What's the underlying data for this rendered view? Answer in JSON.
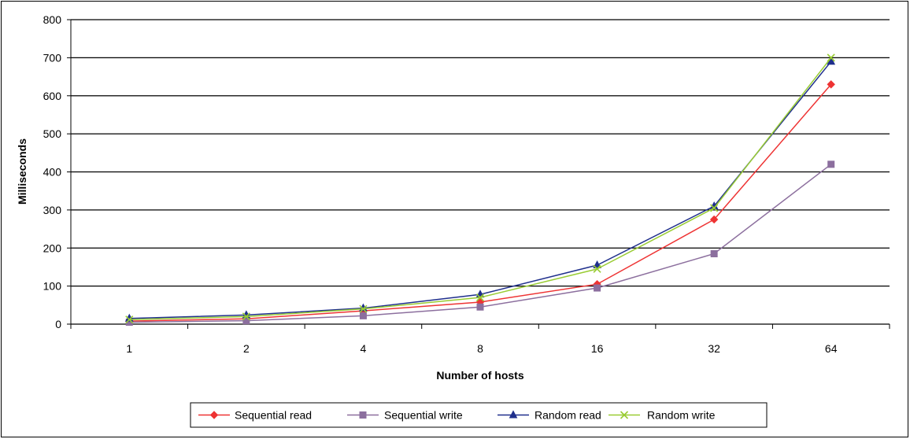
{
  "chart_data": {
    "type": "line",
    "title": "",
    "xlabel": "Number of hosts",
    "ylabel": "Milliseconds",
    "categories": [
      "1",
      "2",
      "4",
      "8",
      "16",
      "32",
      "64"
    ],
    "ylim": [
      0,
      800
    ],
    "yticks": [
      0,
      100,
      200,
      300,
      400,
      500,
      600,
      700,
      800
    ],
    "grid": "horizontal",
    "legend_position": "bottom",
    "series": [
      {
        "name": "Sequential read",
        "color": "#ee3333",
        "marker": "diamond",
        "values": [
          8,
          14,
          35,
          58,
          105,
          275,
          630
        ]
      },
      {
        "name": "Sequential write",
        "color": "#8c6f9e",
        "marker": "square",
        "values": [
          5,
          9,
          22,
          45,
          95,
          185,
          420
        ]
      },
      {
        "name": "Random read",
        "color": "#1f2f8c",
        "marker": "triangle",
        "values": [
          15,
          24,
          42,
          78,
          155,
          310,
          690
        ]
      },
      {
        "name": "Random write",
        "color": "#99cc33",
        "marker": "x",
        "values": [
          12,
          20,
          40,
          70,
          145,
          305,
          700
        ]
      }
    ]
  }
}
